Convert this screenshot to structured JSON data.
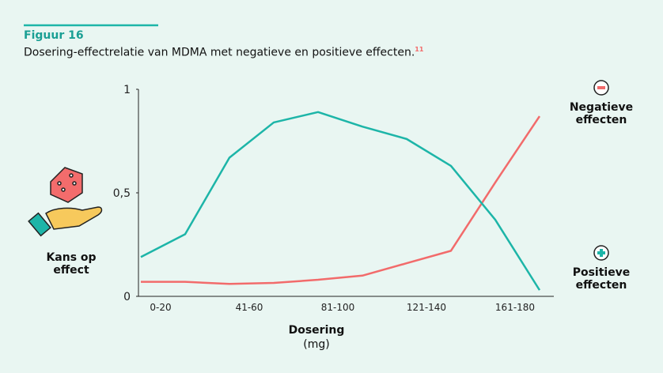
{
  "figure_label": "Figuur 16",
  "subtitle": "Dosering-effectrelatie van MDMA met negatieve en positieve effecten.",
  "footnote": "11",
  "chart_data": {
    "type": "line",
    "ylabel": "Kans op effect",
    "xlabel": "Dosering",
    "xunit": "(mg)",
    "categories": [
      "0-20",
      null,
      "41-60",
      null,
      "81-100",
      null,
      "121-140",
      null,
      "161-180",
      null
    ],
    "series": [
      {
        "name": "Negatieve effecten",
        "color": "#f26b6b",
        "values": [
          0.07,
          0.07,
          0.06,
          0.065,
          0.08,
          0.1,
          0.16,
          0.22,
          0.55,
          0.87
        ]
      },
      {
        "name": "Positieve effecten",
        "color": "#1db5a8",
        "values": [
          0.19,
          0.3,
          0.67,
          0.84,
          0.89,
          0.82,
          0.76,
          0.63,
          0.37,
          0.03
        ]
      }
    ],
    "ylim": [
      0,
      1
    ],
    "yticks": [
      0,
      {
        "value": 0.5,
        "label": "0,5"
      },
      1
    ]
  }
}
